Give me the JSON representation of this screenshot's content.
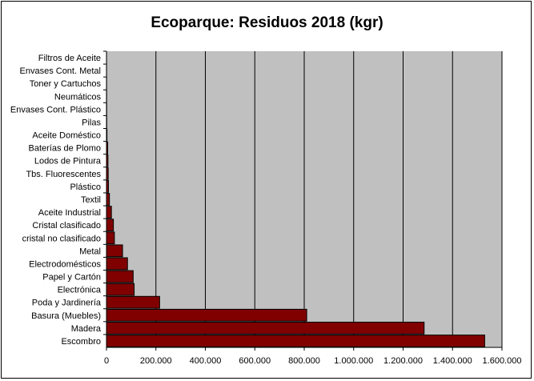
{
  "chart_data": {
    "type": "bar",
    "orientation": "horizontal",
    "title": "Ecoparque: Residuos 2018 (kgr)",
    "xlabel": "",
    "ylabel": "",
    "xlim": [
      0,
      1600000
    ],
    "x_ticks": [
      "0",
      "200.000",
      "400.000",
      "600.000",
      "800.000",
      "1.000.000",
      "1.200.000",
      "1.400.000",
      "1.600.000"
    ],
    "grid": "vertical",
    "legend": "none",
    "categories": [
      "Filtros de Aceite",
      "Envases Cont. Metal",
      "Toner y Cartuchos",
      "Neumáticos",
      "Envases Cont. Plástico",
      "Pilas",
      "Aceite Doméstico",
      "Baterías de Plomo",
      "Lodos de Pintura",
      "Tbs. Fluorescentes",
      "Plástico",
      "Textil",
      "Aceite Industrial",
      "Cristal clasificado",
      "cristal no clasificado",
      "Metal",
      "Electrodomésticos",
      "Papel y Cartón",
      "Electrónica",
      "Poda y Jardinería",
      "Basura (Muebles)",
      "Madera",
      "Escombro"
    ],
    "values": [
      200,
      300,
      400,
      600,
      800,
      1000,
      2000,
      5000,
      6000,
      7000,
      8000,
      12000,
      20000,
      28000,
      32000,
      65000,
      85000,
      108000,
      112000,
      215000,
      810000,
      1285000,
      1530000
    ],
    "colors": {
      "bar": "#800000",
      "plot_background": "#c0c0c0",
      "gridline": "#000000"
    }
  }
}
